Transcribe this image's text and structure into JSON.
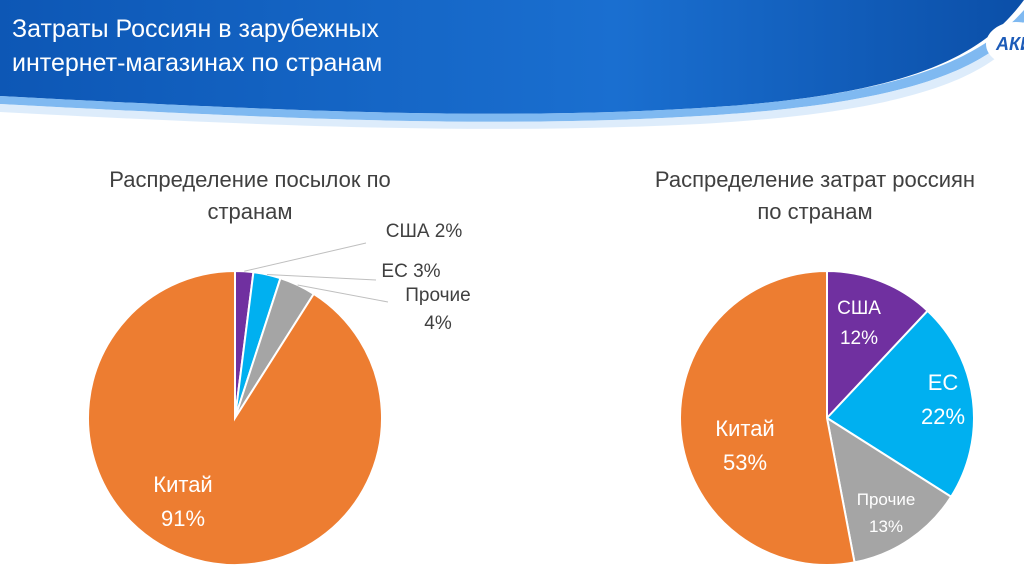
{
  "slide": {
    "title_line1": "Затраты Россиян в зарубежных",
    "title_line2": "интернет-магазинах по странам",
    "logo_text": "АКИТ"
  },
  "colors": {
    "header_blue": "#1565c0",
    "header_light": "#3f8fe0",
    "china": "#ed7d31",
    "usa": "#7030a0",
    "eu": "#00b0f0",
    "other": "#a5a5a5"
  },
  "chart_data": [
    {
      "type": "pie",
      "title_line1": "Распределение посылок по",
      "title_line2": "странам",
      "slices": [
        {
          "name": "США",
          "value": 2,
          "label": "США 2%",
          "color": "#7030a0"
        },
        {
          "name": "ЕС",
          "value": 3,
          "label": "ЕС 3%",
          "color": "#00b0f0"
        },
        {
          "name": "Прочие",
          "value": 4,
          "label_name": "Прочие",
          "label_value": "4%",
          "color": "#a5a5a5"
        },
        {
          "name": "Китай",
          "value": 91,
          "label_name": "Китай",
          "label_value": "91%",
          "color": "#ed7d31"
        }
      ]
    },
    {
      "type": "pie",
      "title_line1": "Распределение  затрат россиян",
      "title_line2": "по странам",
      "slices": [
        {
          "name": "США",
          "value": 12,
          "label_name": "США",
          "label_value": "12%",
          "color": "#7030a0"
        },
        {
          "name": "ЕС",
          "value": 22,
          "label_name": "ЕС",
          "label_value": "22%",
          "color": "#00b0f0"
        },
        {
          "name": "Прочие",
          "value": 13,
          "label_name": "Прочие",
          "label_value": "13%",
          "color": "#a5a5a5"
        },
        {
          "name": "Китай",
          "value": 53,
          "label_name": "Китай",
          "label_value": "53%",
          "color": "#ed7d31"
        }
      ]
    }
  ]
}
